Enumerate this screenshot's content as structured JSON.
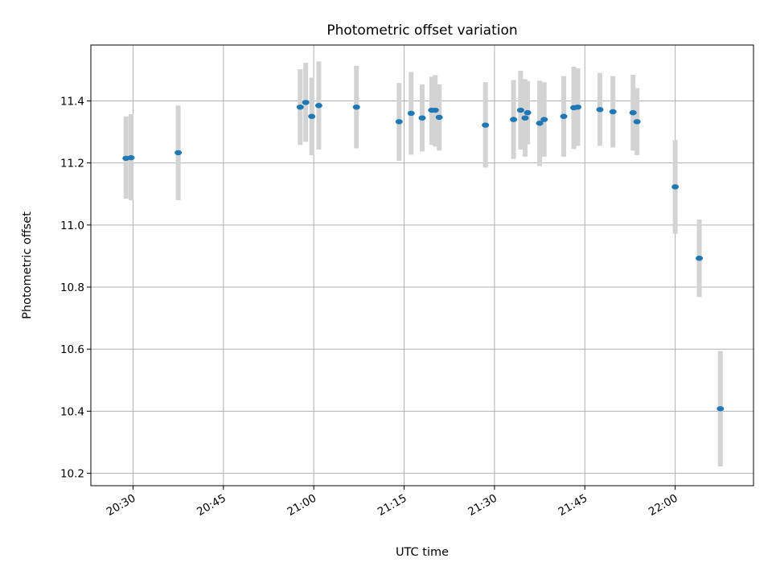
{
  "chart_data": {
    "type": "scatter",
    "title": "Photometric offset variation",
    "xlabel": "UTC time",
    "ylabel": "Photometric offset",
    "x_is_time": true,
    "xlim": [
      "20:23",
      "22:13"
    ],
    "ylim": [
      10.16,
      11.58
    ],
    "x_ticks": [
      "20:30",
      "20:45",
      "21:00",
      "21:15",
      "21:30",
      "21:45",
      "22:00"
    ],
    "y_ticks": [
      "10.2",
      "10.4",
      "10.6",
      "10.8",
      "11.0",
      "11.2",
      "11.4"
    ],
    "grid": true,
    "point_color": "#1f77b4",
    "errorbar_color": "#d3d3d3",
    "points": [
      {
        "t": "20:28:50",
        "y": 11.215,
        "lo": 11.085,
        "hi": 11.35
      },
      {
        "t": "20:29:40",
        "y": 11.217,
        "lo": 11.08,
        "hi": 11.357
      },
      {
        "t": "20:37:30",
        "y": 11.233,
        "lo": 11.08,
        "hi": 11.385
      },
      {
        "t": "20:57:45",
        "y": 11.38,
        "lo": 11.258,
        "hi": 11.502
      },
      {
        "t": "20:58:40",
        "y": 11.395,
        "lo": 11.268,
        "hi": 11.523
      },
      {
        "t": "20:59:40",
        "y": 11.35,
        "lo": 11.225,
        "hi": 11.475
      },
      {
        "t": "21:00:50",
        "y": 11.385,
        "lo": 11.243,
        "hi": 11.527
      },
      {
        "t": "21:07:05",
        "y": 11.38,
        "lo": 11.247,
        "hi": 11.513
      },
      {
        "t": "21:14:10",
        "y": 11.333,
        "lo": 11.207,
        "hi": 11.458
      },
      {
        "t": "21:16:10",
        "y": 11.36,
        "lo": 11.227,
        "hi": 11.493
      },
      {
        "t": "21:18:00",
        "y": 11.345,
        "lo": 11.237,
        "hi": 11.453
      },
      {
        "t": "21:19:35",
        "y": 11.37,
        "lo": 11.258,
        "hi": 11.478
      },
      {
        "t": "21:20:10",
        "y": 11.37,
        "lo": 11.253,
        "hi": 11.483
      },
      {
        "t": "21:20:50",
        "y": 11.347,
        "lo": 11.24,
        "hi": 11.453
      },
      {
        "t": "21:28:30",
        "y": 11.322,
        "lo": 11.185,
        "hi": 11.46
      },
      {
        "t": "21:33:10",
        "y": 11.34,
        "lo": 11.213,
        "hi": 11.467
      },
      {
        "t": "21:34:20",
        "y": 11.37,
        "lo": 11.243,
        "hi": 11.497
      },
      {
        "t": "21:35:05",
        "y": 11.345,
        "lo": 11.22,
        "hi": 11.47
      },
      {
        "t": "21:35:30",
        "y": 11.362,
        "lo": 11.26,
        "hi": 11.464
      },
      {
        "t": "21:37:30",
        "y": 11.328,
        "lo": 11.19,
        "hi": 11.465
      },
      {
        "t": "21:38:15",
        "y": 11.34,
        "lo": 11.22,
        "hi": 11.46
      },
      {
        "t": "21:41:30",
        "y": 11.35,
        "lo": 11.22,
        "hi": 11.48
      },
      {
        "t": "21:43:10",
        "y": 11.378,
        "lo": 11.245,
        "hi": 11.51
      },
      {
        "t": "21:43:50",
        "y": 11.38,
        "lo": 11.255,
        "hi": 11.505
      },
      {
        "t": "21:47:30",
        "y": 11.372,
        "lo": 11.255,
        "hi": 11.49
      },
      {
        "t": "21:49:40",
        "y": 11.365,
        "lo": 11.25,
        "hi": 11.48
      },
      {
        "t": "21:53:00",
        "y": 11.362,
        "lo": 11.24,
        "hi": 11.484
      },
      {
        "t": "21:53:40",
        "y": 11.333,
        "lo": 11.225,
        "hi": 11.441
      },
      {
        "t": "22:00:00",
        "y": 11.123,
        "lo": 10.972,
        "hi": 11.274
      },
      {
        "t": "22:04:00",
        "y": 10.893,
        "lo": 10.768,
        "hi": 11.018
      },
      {
        "t": "22:07:30",
        "y": 10.408,
        "lo": 10.222,
        "hi": 10.594
      }
    ]
  }
}
